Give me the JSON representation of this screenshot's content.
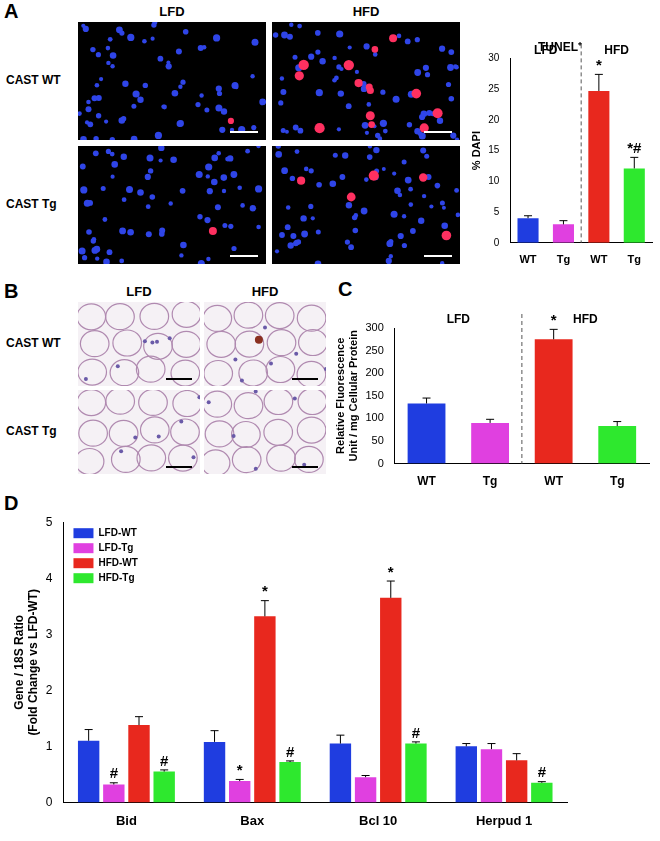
{
  "figure": {
    "image_panels": [
      {
        "panel": "A",
        "columns": [
          "LFD",
          "HFD"
        ],
        "rows": [
          "CAST WT",
          "CAST Tg"
        ]
      },
      {
        "panel": "B",
        "columns": [
          "LFD",
          "HFD"
        ],
        "rows": [
          "CAST WT",
          "CAST Tg"
        ]
      }
    ]
  },
  "chart_data": [
    {
      "type": "bar",
      "title": "TUNEL⁺",
      "y_label": "% DAPI",
      "categories": [
        "WT",
        "Tg",
        "WT",
        "Tg"
      ],
      "groups": [
        {
          "label": "LFD",
          "size": 2
        },
        {
          "label": "HFD",
          "size": 2
        }
      ],
      "values": [
        4.0,
        3.0,
        24.7,
        12.1
      ],
      "errors": [
        0.4,
        0.6,
        2.7,
        1.8
      ],
      "annotations": [
        null,
        null,
        "*",
        "*#"
      ],
      "colors": [
        "#1f3de0",
        "#e040e0",
        "#e8281e",
        "#2ee82e"
      ],
      "ylim": [
        0,
        30
      ],
      "yticks": [
        0,
        5,
        10,
        15,
        20,
        25,
        30
      ],
      "grid": false
    },
    {
      "type": "bar",
      "panel": "C",
      "y_label": [
        "Relative Fluorescence",
        "Unit / mg Cellular Protein"
      ],
      "categories": [
        "WT",
        "Tg",
        "WT",
        "Tg"
      ],
      "groups": [
        {
          "label": "LFD",
          "size": 2
        },
        {
          "label": "HFD",
          "size": 2
        }
      ],
      "values": [
        133,
        90,
        275,
        83
      ],
      "errors": [
        12,
        8,
        22,
        10
      ],
      "annotations": [
        null,
        null,
        "*",
        null
      ],
      "colors": [
        "#1f3de0",
        "#e040e0",
        "#e8281e",
        "#2ee82e"
      ],
      "ylim": [
        0,
        300
      ],
      "yticks": [
        0,
        50,
        100,
        150,
        200,
        250,
        300
      ],
      "grid": false
    },
    {
      "type": "bar",
      "panel": "D",
      "y_label": [
        "Gene / 18S Ratio",
        "(Fold Change vs LFD-WT)"
      ],
      "categories": [
        "Bid",
        "Bax",
        "Bcl 10",
        "Herpud 1"
      ],
      "series": [
        {
          "name": "LFD-WT",
          "color": "#1f3de0",
          "values": [
            1.1,
            1.08,
            1.05,
            1.0
          ],
          "errors": [
            0.2,
            0.2,
            0.15,
            0.05
          ],
          "annotations": [
            null,
            null,
            null,
            null
          ]
        },
        {
          "name": "LFD-Tg",
          "color": "#e040e0",
          "values": [
            0.32,
            0.38,
            0.45,
            0.95
          ],
          "errors": [
            0.03,
            0.03,
            0.03,
            0.1
          ],
          "annotations": [
            "#",
            "*",
            null,
            null
          ]
        },
        {
          "name": "HFD-WT",
          "color": "#e8281e",
          "values": [
            1.38,
            3.32,
            3.65,
            0.75
          ],
          "errors": [
            0.15,
            0.28,
            0.3,
            0.12
          ],
          "annotations": [
            null,
            "*",
            "*",
            null
          ]
        },
        {
          "name": "HFD-Tg",
          "color": "#2ee82e",
          "values": [
            0.55,
            0.72,
            1.05,
            0.35
          ],
          "errors": [
            0.03,
            0.02,
            0.03,
            0.02
          ],
          "annotations": [
            "#",
            "#",
            "#",
            "#"
          ]
        }
      ],
      "ylim": [
        0,
        5
      ],
      "yticks": [
        0,
        1,
        2,
        3,
        4,
        5
      ],
      "grid": false,
      "legend": "upper left"
    }
  ]
}
